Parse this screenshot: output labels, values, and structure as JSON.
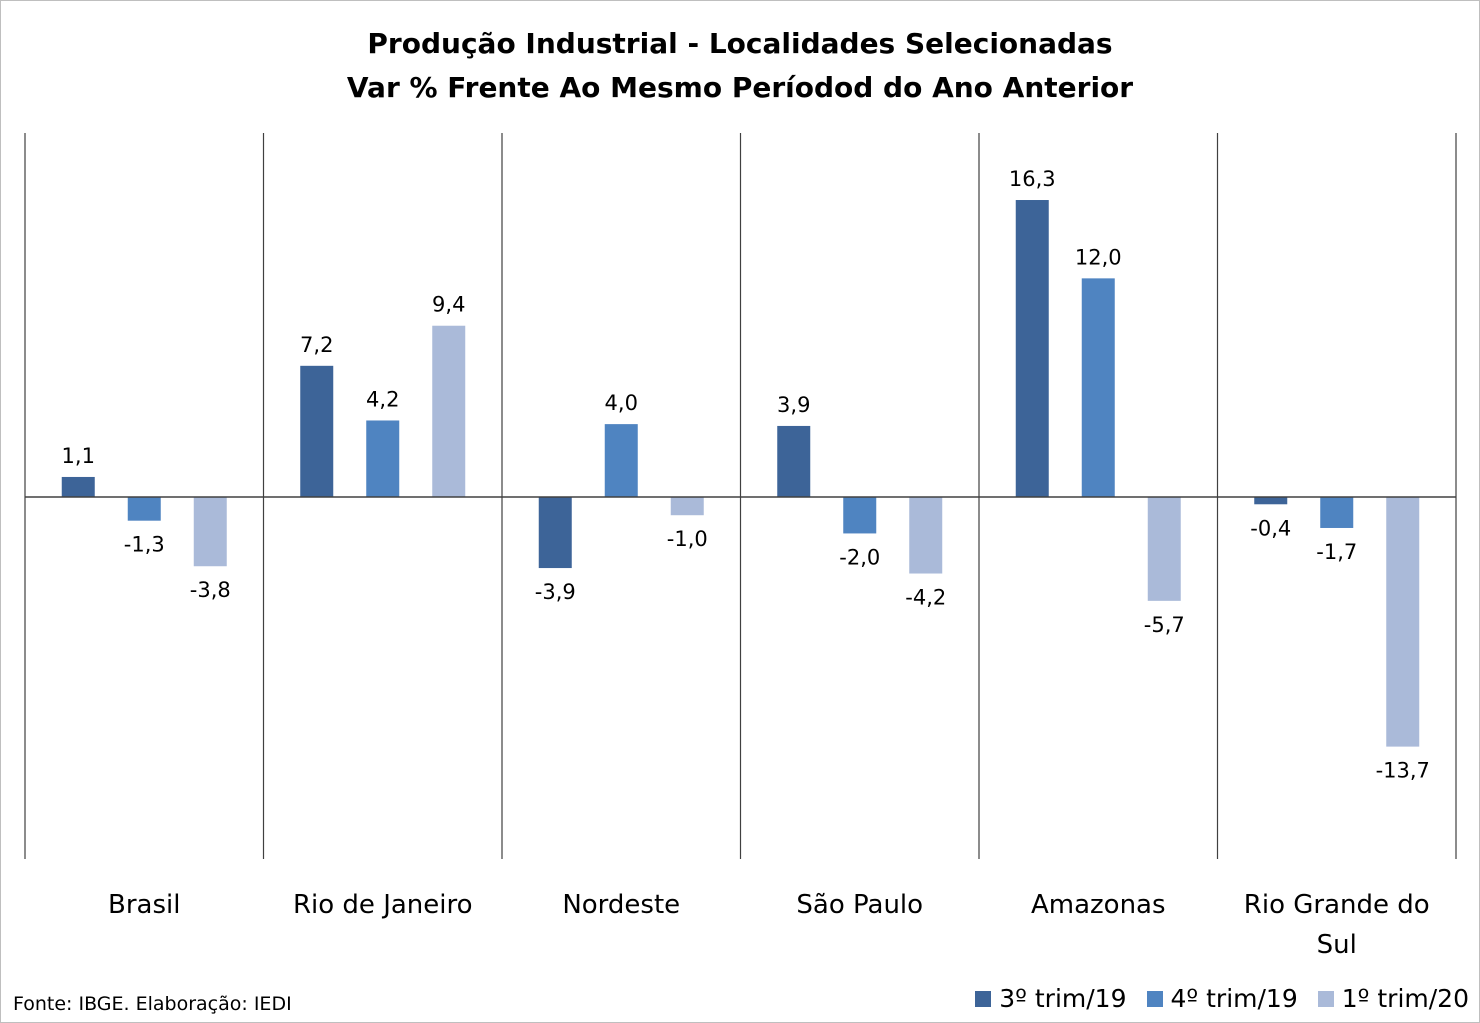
{
  "chart_data": {
    "type": "bar",
    "title": "Produção Industrial - Localidades Selecionadas",
    "subtitle": "Var % Frente Ao Mesmo Períodod do Ano Anterior",
    "categories": [
      [
        "Brasil"
      ],
      [
        "Rio de Janeiro"
      ],
      [
        "Nordeste"
      ],
      [
        "São Paulo"
      ],
      [
        "Amazonas"
      ],
      [
        "Rio Grande do",
        "Sul"
      ]
    ],
    "series": [
      {
        "name": "3º trim/19",
        "color": "#3d6498",
        "values": [
          1.1,
          7.2,
          -3.9,
          3.9,
          16.3,
          -0.4
        ],
        "labels": [
          "1,1",
          "7,2",
          "-3,9",
          "3,9",
          "16,3",
          "-0,4"
        ]
      },
      {
        "name": "4º trim/19",
        "color": "#4f84c1",
        "values": [
          -1.3,
          4.2,
          4.0,
          -2.0,
          12.0,
          -1.7
        ],
        "labels": [
          "-1,3",
          "4,2",
          "4,0",
          "-2,0",
          "12,0",
          "-1,7"
        ]
      },
      {
        "name": "1º trim/20",
        "color": "#aabad9",
        "values": [
          -3.8,
          9.4,
          -1.0,
          -4.2,
          -5.7,
          -13.7
        ],
        "labels": [
          "-3,8",
          "9,4",
          "-1,0",
          "-4,2",
          "-5,7",
          "-13,7"
        ]
      }
    ],
    "ylim": [
      -20,
      20
    ],
    "legend_position": "bottom-right",
    "grid": false
  },
  "source_note": "Fonte: IBGE. Elaboração: IEDI"
}
